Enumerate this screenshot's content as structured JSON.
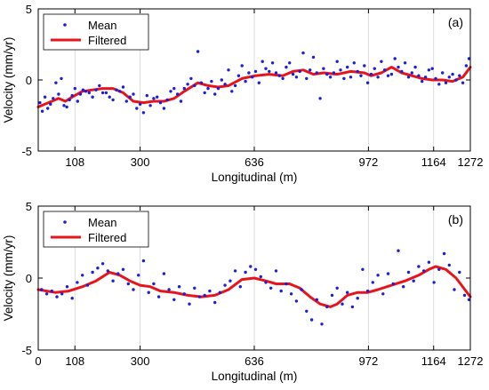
{
  "chart_data": [
    {
      "type": "scatter",
      "panel_label": "(a)",
      "xlabel": "Longitudinal (m)",
      "ylabel": "Velocity (mm/yr)",
      "xlim": [
        0,
        1272
      ],
      "ylim": [
        -5,
        5
      ],
      "xticks": [
        108,
        300,
        636,
        972,
        1164,
        1272
      ],
      "xtick_labels": [
        "108",
        "300",
        "636",
        "972",
        "1164",
        "1272"
      ],
      "yticks": [
        -5,
        0,
        5
      ],
      "ytick_labels": [
        "-5",
        "0",
        "5"
      ],
      "grid": "vertical-at-xticks",
      "legend_placement": "top-left",
      "series": [
        {
          "name": "Mean",
          "style": "points",
          "color": "#1f1fd6",
          "x": [
            5,
            12,
            20,
            28,
            36,
            44,
            52,
            60,
            68,
            76,
            84,
            92,
            100,
            108,
            116,
            124,
            132,
            140,
            150,
            160,
            170,
            180,
            190,
            200,
            210,
            220,
            230,
            240,
            250,
            260,
            270,
            280,
            290,
            300,
            310,
            320,
            330,
            340,
            350,
            360,
            370,
            380,
            390,
            400,
            410,
            420,
            430,
            440,
            450,
            460,
            470,
            480,
            490,
            500,
            510,
            520,
            530,
            540,
            550,
            560,
            570,
            580,
            590,
            600,
            610,
            620,
            630,
            640,
            650,
            660,
            670,
            680,
            690,
            700,
            710,
            720,
            730,
            740,
            750,
            760,
            770,
            780,
            790,
            800,
            810,
            820,
            830,
            840,
            850,
            860,
            870,
            880,
            890,
            900,
            910,
            920,
            930,
            940,
            950,
            960,
            970,
            980,
            990,
            1000,
            1010,
            1020,
            1030,
            1040,
            1050,
            1060,
            1070,
            1080,
            1090,
            1100,
            1110,
            1120,
            1130,
            1140,
            1150,
            1160,
            1170,
            1180,
            1190,
            1200,
            1210,
            1220,
            1230,
            1240,
            1250,
            1260,
            1268
          ],
          "y": [
            -1.6,
            -2.2,
            -1.2,
            -2.0,
            -1.7,
            -1.3,
            -0.2,
            -1.0,
            0.1,
            -1.8,
            -1.9,
            -1.4,
            -1.1,
            -0.6,
            -1.5,
            -1.0,
            -0.7,
            -0.8,
            -0.9,
            -1.2,
            -0.7,
            -0.4,
            -0.9,
            -0.9,
            -1.2,
            -1.4,
            -0.7,
            -0.8,
            -0.5,
            -1.5,
            -1.2,
            -1.0,
            -2.0,
            -1.7,
            -2.3,
            -1.1,
            -1.8,
            -1.3,
            -1.2,
            -1.6,
            -2.0,
            -1.4,
            -0.8,
            -0.6,
            -1.0,
            -1.5,
            -0.6,
            -0.3,
            0.1,
            -0.4,
            2.0,
            -0.2,
            -0.9,
            -0.6,
            -0.1,
            -1.0,
            -0.6,
            0.0,
            -0.3,
            0.7,
            -0.8,
            -0.4,
            0.3,
            1.0,
            -0.1,
            0.5,
            0.2,
            0.6,
            -0.2,
            1.3,
            0.8,
            0.6,
            1.2,
            0.5,
            0.3,
            0.1,
            0.9,
            1.2,
            0.4,
            0.2,
            0.6,
            1.9,
            0.1,
            0.7,
            1.6,
            0.5,
            -1.3,
            0.8,
            0.4,
            0.2,
            0.5,
            1.3,
            0.7,
            0.1,
            0.9,
            0.2,
            1.2,
            0.6,
            0.3,
            1.0,
            -0.2,
            0.4,
            0.8,
            0.2,
            1.3,
            0.7,
            0.3,
            0.4,
            1.5,
            0.9,
            0.6,
            1.2,
            0.2,
            0.5,
            0.9,
            0.3,
            -0.1,
            0.2,
            0.7,
            0.8,
            0.1,
            -0.3,
            0.5,
            -0.2,
            0.2,
            0.4,
            0.0,
            0.3,
            -0.2,
            1.0,
            1.5
          ]
        },
        {
          "name": "Filtered",
          "style": "line",
          "color": "#e8141b",
          "x": [
            0,
            40,
            60,
            80,
            100,
            130,
            160,
            190,
            220,
            250,
            280,
            310,
            340,
            370,
            400,
            430,
            470,
            500,
            530,
            560,
            600,
            640,
            680,
            720,
            750,
            780,
            810,
            840,
            880,
            920,
            960,
            980,
            1010,
            1040,
            1070,
            1100,
            1130,
            1160,
            1190,
            1220,
            1250,
            1272
          ],
          "y": [
            -1.9,
            -1.5,
            -1.3,
            -1.5,
            -1.2,
            -0.8,
            -0.7,
            -0.6,
            -0.6,
            -0.9,
            -1.5,
            -1.6,
            -1.5,
            -1.5,
            -1.3,
            -0.8,
            -0.2,
            -0.4,
            -0.5,
            -0.4,
            0.1,
            0.3,
            0.4,
            0.3,
            0.6,
            0.7,
            0.4,
            0.5,
            0.4,
            0.6,
            0.5,
            0.3,
            0.5,
            0.9,
            0.5,
            0.3,
            0.1,
            0.0,
            0.0,
            -0.1,
            0.2,
            0.9
          ]
        }
      ]
    },
    {
      "type": "scatter",
      "panel_label": "(b)",
      "xlabel": "Longitudinal (m)",
      "ylabel": "Velocity (mm/yr)",
      "xlim": [
        0,
        1272
      ],
      "ylim": [
        -5,
        5
      ],
      "xticks": [
        0,
        108,
        300,
        636,
        972,
        1164,
        1272
      ],
      "xtick_labels": [
        "0",
        "108",
        "300",
        "636",
        "972",
        "1164",
        "1272"
      ],
      "yticks": [
        -5,
        0,
        5
      ],
      "ytick_labels": [
        "-5",
        "0",
        "5"
      ],
      "grid": "vertical-at-xticks",
      "legend_placement": "top-left",
      "series": [
        {
          "name": "Mean",
          "style": "points",
          "color": "#1f1fd6",
          "x": [
            10,
            25,
            40,
            55,
            70,
            85,
            100,
            115,
            130,
            145,
            160,
            175,
            190,
            205,
            220,
            235,
            250,
            265,
            280,
            295,
            310,
            325,
            340,
            355,
            370,
            385,
            400,
            415,
            430,
            445,
            460,
            475,
            490,
            505,
            520,
            535,
            550,
            565,
            580,
            595,
            610,
            625,
            640,
            655,
            670,
            685,
            700,
            715,
            730,
            745,
            760,
            775,
            790,
            805,
            820,
            835,
            850,
            865,
            880,
            895,
            910,
            925,
            940,
            955,
            970,
            985,
            1000,
            1015,
            1030,
            1045,
            1060,
            1075,
            1090,
            1105,
            1120,
            1135,
            1150,
            1165,
            1180,
            1195,
            1210,
            1225,
            1240,
            1255,
            1268
          ],
          "y": [
            -0.8,
            -1.1,
            -0.9,
            -1.3,
            -1.1,
            -0.6,
            -1.4,
            -0.3,
            0.2,
            -0.5,
            0.4,
            0.7,
            1.0,
            0.5,
            -0.2,
            0.3,
            0.6,
            -0.4,
            -0.8,
            0.2,
            1.2,
            -1.0,
            -0.4,
            -1.3,
            0.3,
            -0.8,
            -1.5,
            -0.6,
            -1.1,
            -1.8,
            -0.7,
            -1.3,
            -1.2,
            -0.9,
            -1.7,
            -1.0,
            -0.5,
            -0.2,
            0.5,
            -0.6,
            0.4,
            0.8,
            0.6,
            0.1,
            -0.3,
            -0.7,
            0.5,
            -0.9,
            -0.4,
            -1.1,
            -1.6,
            -0.8,
            -2.3,
            -2.9,
            -1.5,
            -3.2,
            -2.0,
            -1.2,
            -0.7,
            -1.8,
            -1.0,
            -2.0,
            -1.4,
            0.6,
            -0.9,
            -0.3,
            0.2,
            -1.1,
            0.3,
            -0.4,
            1.9,
            -0.6,
            0.4,
            -0.2,
            0.8,
            0.5,
            1.1,
            -0.3,
            0.6,
            1.7,
            0.9,
            -0.8,
            0.4,
            -1.2,
            -1.5
          ]
        },
        {
          "name": "Filtered",
          "style": "line",
          "color": "#e8141b",
          "x": [
            0,
            50,
            90,
            130,
            170,
            210,
            240,
            270,
            300,
            330,
            360,
            400,
            440,
            480,
            520,
            560,
            600,
            636,
            670,
            700,
            740,
            770,
            800,
            830,
            860,
            880,
            910,
            940,
            970,
            1000,
            1040,
            1080,
            1120,
            1150,
            1170,
            1200,
            1230,
            1272
          ],
          "y": [
            -0.8,
            -1.0,
            -0.9,
            -0.6,
            -0.2,
            0.4,
            0.2,
            -0.2,
            -0.5,
            -0.6,
            -0.9,
            -1.0,
            -1.2,
            -1.3,
            -1.2,
            -0.8,
            -0.1,
            0.0,
            -0.2,
            -0.4,
            -0.4,
            -0.7,
            -1.3,
            -1.8,
            -2.0,
            -1.8,
            -1.2,
            -1.0,
            -1.0,
            -0.8,
            -0.5,
            -0.2,
            0.2,
            0.6,
            0.8,
            0.6,
            0.0,
            -1.3
          ]
        }
      ]
    }
  ]
}
